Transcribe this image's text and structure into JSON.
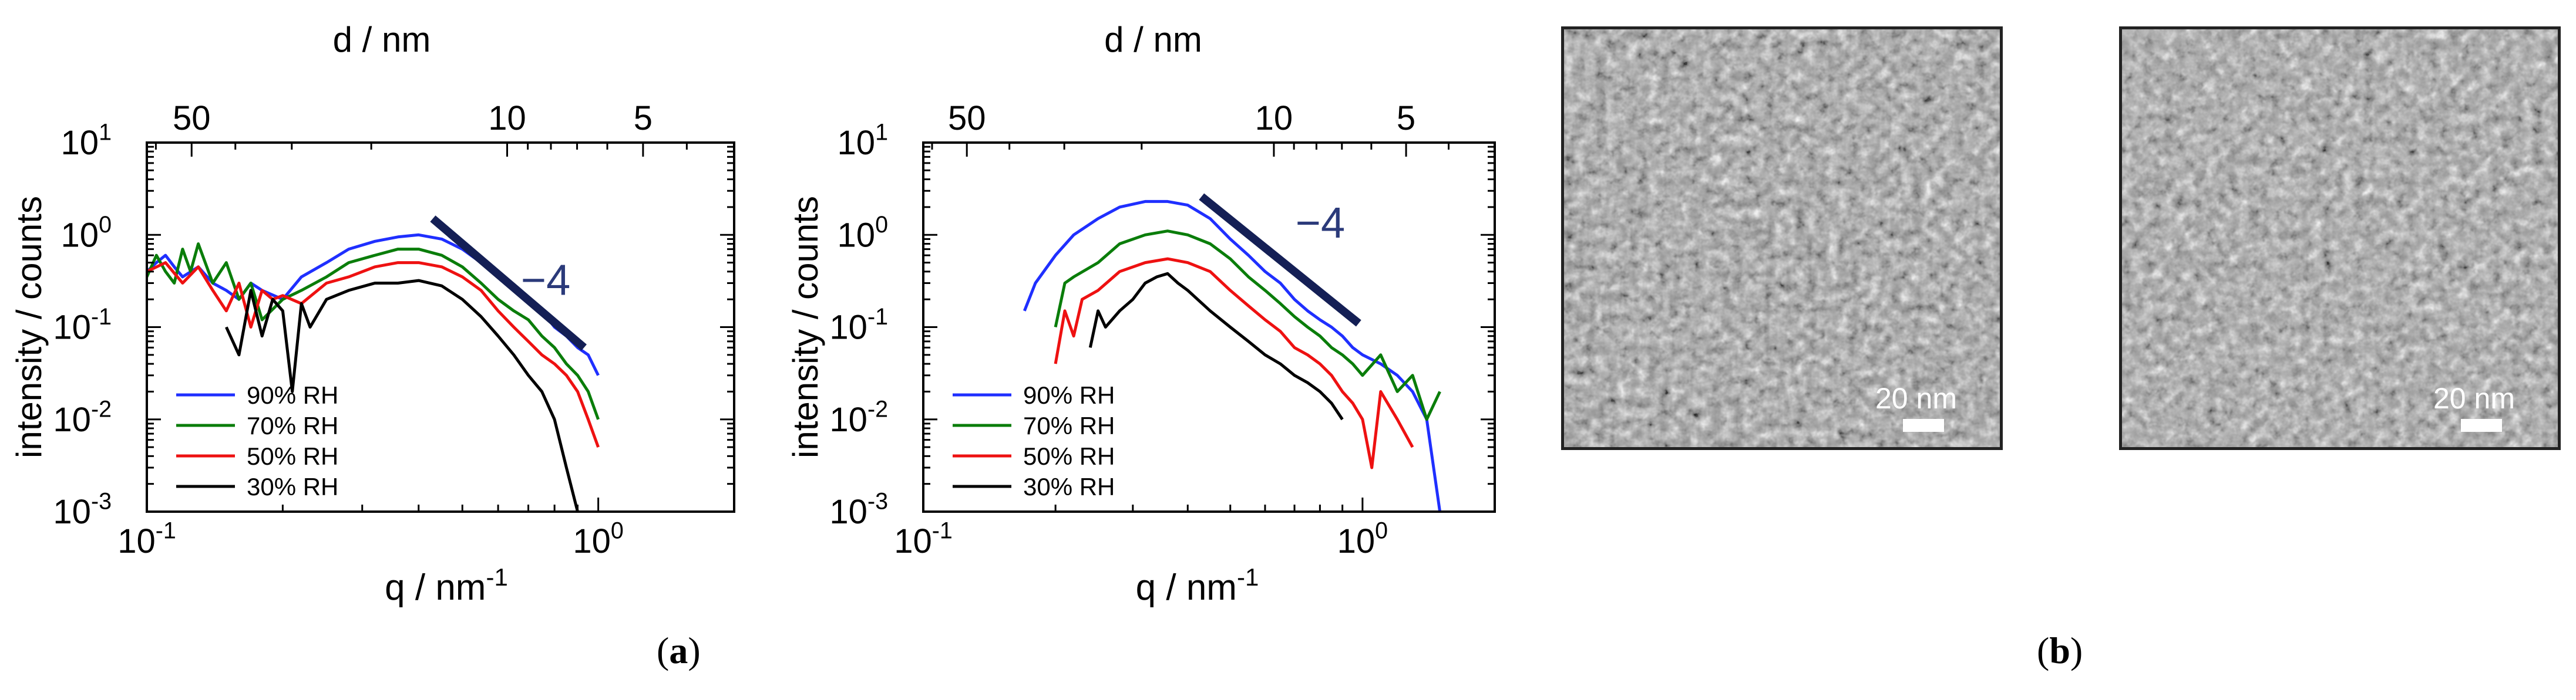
{
  "panel_labels": {
    "a": "a",
    "b": "b"
  },
  "chart_data": [
    {
      "type": "line",
      "panel": "a-left",
      "xscale": "log",
      "yscale": "log",
      "xlabel": "q / nm-1",
      "xlabel_main": "q / nm",
      "xlabel_sup": "-1",
      "ylabel": "intensity / counts",
      "top_axis_label": "d / nm",
      "xlim": [
        0.1,
        2.0
      ],
      "ylim": [
        0.001,
        10
      ],
      "x_tick_labels": [
        {
          "base": "10",
          "exp": "-1",
          "value": 0.1
        },
        {
          "base": "10",
          "exp": "0",
          "value": 1.0
        }
      ],
      "y_tick_labels": [
        {
          "base": "10",
          "exp": "1",
          "value": 10
        },
        {
          "base": "10",
          "exp": "0",
          "value": 1
        },
        {
          "base": "10",
          "exp": "-1",
          "value": 0.1
        },
        {
          "base": "10",
          "exp": "-2",
          "value": 0.01
        },
        {
          "base": "10",
          "exp": "-3",
          "value": 0.001
        }
      ],
      "top_tick_labels": [
        {
          "label": "50",
          "d": 50
        },
        {
          "label": "10",
          "d": 10
        },
        {
          "label": "5",
          "d": 5
        }
      ],
      "slope_annotation": {
        "label": "−4",
        "x1": 0.43,
        "y1": 1.5,
        "x2": 0.93,
        "y2": 0.06
      },
      "series": [
        {
          "name": "90% RH",
          "color": "#1f2fff",
          "x": [
            0.1,
            0.105,
            0.11,
            0.115,
            0.12,
            0.13,
            0.14,
            0.15,
            0.16,
            0.17,
            0.18,
            0.2,
            0.22,
            0.25,
            0.28,
            0.32,
            0.36,
            0.4,
            0.45,
            0.5,
            0.55,
            0.6,
            0.65,
            0.7,
            0.75,
            0.8,
            0.85,
            0.9,
            0.95,
            1.0
          ],
          "values": [
            0.4,
            0.5,
            0.6,
            0.45,
            0.35,
            0.45,
            0.3,
            0.25,
            0.2,
            0.3,
            0.25,
            0.2,
            0.35,
            0.5,
            0.7,
            0.85,
            0.95,
            1.0,
            0.9,
            0.7,
            0.5,
            0.35,
            0.25,
            0.2,
            0.15,
            0.1,
            0.08,
            0.06,
            0.05,
            0.03
          ]
        },
        {
          "name": "70% RH",
          "color": "#0a7d0a",
          "x": [
            0.1,
            0.105,
            0.11,
            0.115,
            0.12,
            0.125,
            0.13,
            0.14,
            0.15,
            0.16,
            0.17,
            0.18,
            0.2,
            0.22,
            0.25,
            0.28,
            0.32,
            0.36,
            0.4,
            0.45,
            0.5,
            0.55,
            0.6,
            0.65,
            0.7,
            0.75,
            0.8,
            0.85,
            0.9,
            0.95,
            1.0
          ],
          "values": [
            0.35,
            0.6,
            0.4,
            0.3,
            0.7,
            0.4,
            0.8,
            0.3,
            0.5,
            0.2,
            0.3,
            0.12,
            0.2,
            0.25,
            0.35,
            0.5,
            0.6,
            0.7,
            0.7,
            0.6,
            0.45,
            0.3,
            0.2,
            0.15,
            0.12,
            0.08,
            0.06,
            0.04,
            0.03,
            0.02,
            0.01
          ]
        },
        {
          "name": "50% RH",
          "color": "#ee1111",
          "x": [
            0.1,
            0.11,
            0.12,
            0.13,
            0.14,
            0.15,
            0.16,
            0.17,
            0.18,
            0.19,
            0.2,
            0.22,
            0.25,
            0.28,
            0.32,
            0.36,
            0.4,
            0.45,
            0.5,
            0.55,
            0.6,
            0.65,
            0.7,
            0.75,
            0.8,
            0.85,
            0.9,
            0.95,
            1.0
          ],
          "values": [
            0.4,
            0.5,
            0.3,
            0.45,
            0.25,
            0.15,
            0.3,
            0.1,
            0.25,
            0.2,
            0.22,
            0.18,
            0.3,
            0.35,
            0.45,
            0.5,
            0.5,
            0.45,
            0.35,
            0.25,
            0.15,
            0.1,
            0.07,
            0.05,
            0.04,
            0.03,
            0.02,
            0.01,
            0.005
          ]
        },
        {
          "name": "30% RH",
          "color": "#000000",
          "x": [
            0.15,
            0.16,
            0.17,
            0.18,
            0.19,
            0.2,
            0.21,
            0.22,
            0.23,
            0.25,
            0.28,
            0.32,
            0.36,
            0.4,
            0.45,
            0.5,
            0.55,
            0.6,
            0.65,
            0.7,
            0.75,
            0.8,
            0.85,
            0.9
          ],
          "values": [
            0.1,
            0.05,
            0.25,
            0.08,
            0.2,
            0.15,
            0.02,
            0.18,
            0.1,
            0.2,
            0.25,
            0.3,
            0.3,
            0.32,
            0.28,
            0.2,
            0.13,
            0.08,
            0.05,
            0.03,
            0.02,
            0.01,
            0.003,
            0.001
          ]
        }
      ]
    },
    {
      "type": "line",
      "panel": "a-right",
      "xscale": "log",
      "yscale": "log",
      "xlabel": "q / nm-1",
      "xlabel_main": "q / nm",
      "xlabel_sup": "-1",
      "ylabel": "intensity / counts",
      "top_axis_label": "d / nm",
      "xlim": [
        0.1,
        2.0
      ],
      "ylim": [
        0.001,
        10
      ],
      "x_tick_labels": [
        {
          "base": "10",
          "exp": "-1",
          "value": 0.1
        },
        {
          "base": "10",
          "exp": "0",
          "value": 1.0
        }
      ],
      "y_tick_labels": [
        {
          "base": "10",
          "exp": "1",
          "value": 10
        },
        {
          "base": "10",
          "exp": "0",
          "value": 1
        },
        {
          "base": "10",
          "exp": "-1",
          "value": 0.1
        },
        {
          "base": "10",
          "exp": "-2",
          "value": 0.01
        },
        {
          "base": "10",
          "exp": "-3",
          "value": 0.001
        }
      ],
      "top_tick_labels": [
        {
          "label": "50",
          "d": 50
        },
        {
          "label": "10",
          "d": 10
        },
        {
          "label": "5",
          "d": 5
        }
      ],
      "slope_annotation": {
        "label": "−4",
        "x1": 0.43,
        "y1": 2.6,
        "x2": 0.98,
        "y2": 0.11
      },
      "series": [
        {
          "name": "90% RH",
          "color": "#1f2fff",
          "x": [
            0.17,
            0.18,
            0.2,
            0.22,
            0.25,
            0.28,
            0.32,
            0.36,
            0.4,
            0.45,
            0.5,
            0.55,
            0.6,
            0.65,
            0.7,
            0.75,
            0.8,
            0.85,
            0.9,
            0.95,
            1.0,
            1.1,
            1.2,
            1.3,
            1.4,
            1.5
          ],
          "values": [
            0.15,
            0.3,
            0.6,
            1.0,
            1.5,
            2.0,
            2.3,
            2.3,
            2.1,
            1.5,
            0.9,
            0.6,
            0.4,
            0.3,
            0.2,
            0.15,
            0.12,
            0.1,
            0.08,
            0.06,
            0.05,
            0.04,
            0.03,
            0.02,
            0.01,
            0.001
          ]
        },
        {
          "name": "70% RH",
          "color": "#0a7d0a",
          "x": [
            0.2,
            0.21,
            0.22,
            0.25,
            0.28,
            0.32,
            0.36,
            0.4,
            0.45,
            0.5,
            0.55,
            0.6,
            0.65,
            0.7,
            0.75,
            0.8,
            0.85,
            0.9,
            0.95,
            1.0,
            1.1,
            1.2,
            1.3,
            1.4,
            1.5
          ],
          "values": [
            0.1,
            0.3,
            0.35,
            0.5,
            0.8,
            1.0,
            1.1,
            1.0,
            0.8,
            0.55,
            0.35,
            0.25,
            0.18,
            0.13,
            0.1,
            0.08,
            0.06,
            0.05,
            0.04,
            0.03,
            0.05,
            0.02,
            0.03,
            0.01,
            0.02
          ]
        },
        {
          "name": "50% RH",
          "color": "#ee1111",
          "x": [
            0.2,
            0.21,
            0.22,
            0.23,
            0.25,
            0.28,
            0.32,
            0.36,
            0.4,
            0.45,
            0.5,
            0.55,
            0.6,
            0.65,
            0.7,
            0.75,
            0.8,
            0.85,
            0.9,
            0.95,
            1.0,
            1.05,
            1.1,
            1.2,
            1.3
          ],
          "values": [
            0.04,
            0.15,
            0.08,
            0.2,
            0.25,
            0.4,
            0.5,
            0.55,
            0.5,
            0.4,
            0.25,
            0.17,
            0.12,
            0.09,
            0.06,
            0.05,
            0.04,
            0.03,
            0.02,
            0.015,
            0.01,
            0.003,
            0.02,
            0.01,
            0.005
          ]
        },
        {
          "name": "30% RH",
          "color": "#000000",
          "x": [
            0.24,
            0.25,
            0.26,
            0.28,
            0.3,
            0.32,
            0.34,
            0.36,
            0.38,
            0.4,
            0.45,
            0.5,
            0.55,
            0.6,
            0.65,
            0.7,
            0.75,
            0.8,
            0.85,
            0.9
          ],
          "values": [
            0.06,
            0.15,
            0.1,
            0.15,
            0.2,
            0.3,
            0.35,
            0.38,
            0.3,
            0.25,
            0.15,
            0.1,
            0.07,
            0.05,
            0.04,
            0.03,
            0.025,
            0.02,
            0.015,
            0.01
          ]
        }
      ]
    }
  ],
  "tem_images": [
    {
      "name": "tem-image-1",
      "scale_label": "20 nm"
    },
    {
      "name": "tem-image-2",
      "scale_label": "20 nm"
    }
  ]
}
